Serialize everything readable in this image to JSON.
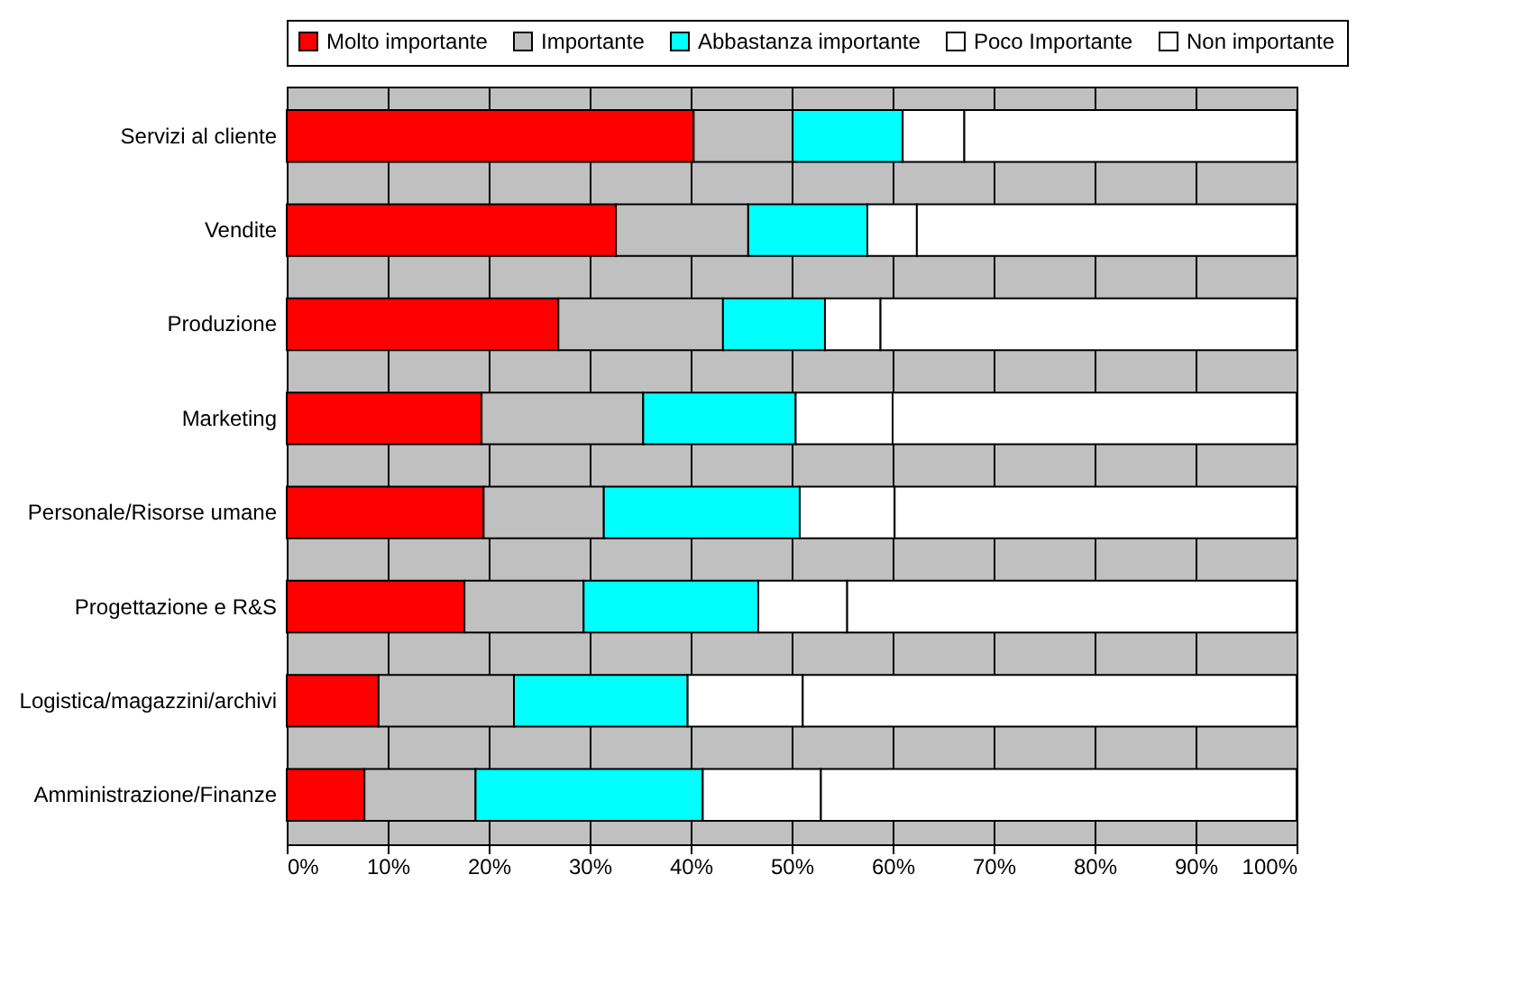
{
  "chart_data": {
    "type": "bar",
    "orientation": "horizontal",
    "stacked": true,
    "categories": [
      "Servizi al cliente",
      "Vendite",
      "Produzione",
      "Marketing",
      "Personale/Risorse umane",
      "Progettazione e R&S",
      "Logistica/magazzini/archivi",
      "Amministrazione/Finanze"
    ],
    "series": [
      {
        "name": "Molto importante",
        "color": "#ff0000",
        "values": [
          40.3,
          32.6,
          26.9,
          19.3,
          19.5,
          17.6,
          9.1,
          7.7
        ]
      },
      {
        "name": "Importante",
        "color": "#c0c0c0",
        "values": [
          9.8,
          13.1,
          16.3,
          16.0,
          11.9,
          11.8,
          13.4,
          11.0
        ]
      },
      {
        "name": "Abbastanza importante",
        "color": "#00ffff",
        "values": [
          10.9,
          11.8,
          10.1,
          15.1,
          19.4,
          17.3,
          17.2,
          22.5
        ]
      },
      {
        "name": "Poco Importante",
        "color": "#ffffff",
        "values": [
          6.1,
          4.9,
          5.5,
          9.6,
          9.4,
          8.8,
          11.4,
          11.7
        ]
      },
      {
        "name": "Non importante",
        "color": "#ffffff",
        "values": [
          32.9,
          37.6,
          41.2,
          40.0,
          39.8,
          44.5,
          48.9,
          47.1
        ]
      }
    ],
    "xlim": [
      0,
      100
    ],
    "xticks": [
      {
        "value": 0,
        "label": "0%"
      },
      {
        "value": 10,
        "label": "10%"
      },
      {
        "value": 20,
        "label": "20%"
      },
      {
        "value": 30,
        "label": "30%"
      },
      {
        "value": 40,
        "label": "40%"
      },
      {
        "value": 50,
        "label": "50%"
      },
      {
        "value": 60,
        "label": "60%"
      },
      {
        "value": 70,
        "label": "70%"
      },
      {
        "value": 80,
        "label": "80%"
      },
      {
        "value": 90,
        "label": "90%"
      },
      {
        "value": 100,
        "label": "100%"
      }
    ],
    "grid": "x",
    "legend": "top"
  }
}
